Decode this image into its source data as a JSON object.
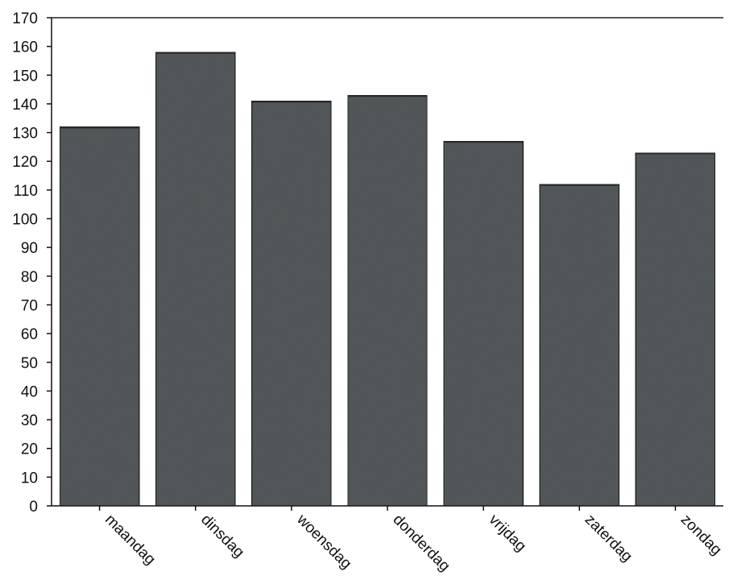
{
  "chart_data": {
    "type": "bar",
    "categories": [
      "maandag",
      "dinsdag",
      "woensdag",
      "donderdag",
      "vrijdag",
      "zaterdag",
      "zondag"
    ],
    "values": [
      132,
      158,
      141,
      143,
      127,
      112,
      123
    ],
    "title": "",
    "xlabel": "",
    "ylabel": "",
    "ylim": [
      0,
      170
    ],
    "yticks": [
      0,
      10,
      20,
      30,
      40,
      50,
      60,
      70,
      80,
      90,
      100,
      110,
      120,
      130,
      140,
      150,
      160,
      170
    ],
    "grid": false,
    "legend": "none",
    "bar_color": "#555a5c"
  }
}
